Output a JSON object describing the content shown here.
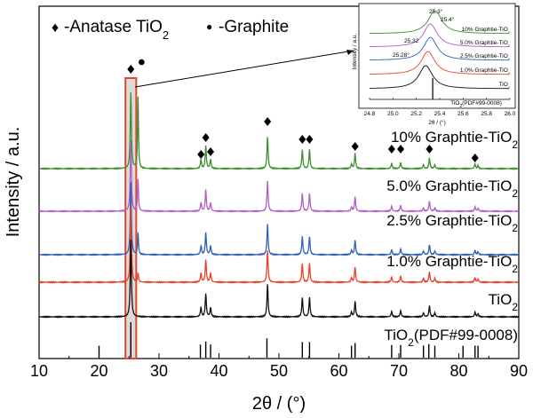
{
  "chart_data": {
    "type": "line",
    "xlabel": "2θ / (°)",
    "ylabel": "Intensity / a.u.",
    "xlim": [
      10,
      90
    ],
    "xticks": [
      "10",
      "20",
      "30",
      "40",
      "50",
      "60",
      "70",
      "80",
      "90"
    ],
    "legend": {
      "anatase": {
        "symbol": "♦",
        "text": "-Anatase TiO",
        "sub": "2"
      },
      "graphite": {
        "symbol": "●",
        "text": "-Graphite"
      }
    },
    "highlight_range": [
      24.4,
      26.2
    ],
    "series": [
      {
        "name": "10% Graphtie-TiO",
        "sub": "2",
        "color": "#3e8f2f",
        "graphite_peak": 26.5,
        "graphite_height": 0.95
      },
      {
        "name": "5.0% Graphtie-TiO",
        "sub": "2",
        "color": "#b15ec8",
        "graphite_peak": 26.5,
        "graphite_height": 0.45
      },
      {
        "name": "2.5% Graphtie-TiO",
        "sub": "2",
        "color": "#2f5fb8",
        "graphite_peak": 26.5,
        "graphite_height": 0.3
      },
      {
        "name": "1.0% Graphtie-TiO",
        "sub": "2",
        "color": "#e8412a",
        "graphite_peak": 26.5,
        "graphite_height": 0.12
      },
      {
        "name": "TiO",
        "sub": "2",
        "color": "#111111",
        "graphite_peak": null,
        "graphite_height": 0
      }
    ],
    "anatase_peaks": [
      {
        "x": 25.3,
        "h": 1.0
      },
      {
        "x": 37.0,
        "h": 0.12
      },
      {
        "x": 37.8,
        "h": 0.3
      },
      {
        "x": 38.6,
        "h": 0.12
      },
      {
        "x": 48.1,
        "h": 0.42
      },
      {
        "x": 53.9,
        "h": 0.25
      },
      {
        "x": 55.1,
        "h": 0.25
      },
      {
        "x": 62.1,
        "h": 0.06
      },
      {
        "x": 62.7,
        "h": 0.2
      },
      {
        "x": 68.8,
        "h": 0.07
      },
      {
        "x": 70.3,
        "h": 0.08
      },
      {
        "x": 74.1,
        "h": 0.05
      },
      {
        "x": 75.1,
        "h": 0.14
      },
      {
        "x": 76.0,
        "h": 0.05
      },
      {
        "x": 82.7,
        "h": 0.06
      },
      {
        "x": 83.2,
        "h": 0.04
      }
    ],
    "reference": {
      "name": "TiO",
      "sub": "2",
      "suffix": "(PDF#99-0008)",
      "lines": [
        {
          "x": 25.3,
          "h": 1.0
        },
        {
          "x": 36.9,
          "h": 0.1
        },
        {
          "x": 37.8,
          "h": 0.22
        },
        {
          "x": 38.6,
          "h": 0.1
        },
        {
          "x": 48.0,
          "h": 0.35
        },
        {
          "x": 53.9,
          "h": 0.2
        },
        {
          "x": 55.1,
          "h": 0.2
        },
        {
          "x": 62.1,
          "h": 0.05
        },
        {
          "x": 62.7,
          "h": 0.16
        },
        {
          "x": 68.8,
          "h": 0.08
        },
        {
          "x": 70.3,
          "h": 0.08
        },
        {
          "x": 74.1,
          "h": 0.06
        },
        {
          "x": 75.0,
          "h": 0.12
        },
        {
          "x": 76.0,
          "h": 0.05
        },
        {
          "x": 80.7,
          "h": 0.05
        },
        {
          "x": 82.7,
          "h": 0.06
        },
        {
          "x": 83.2,
          "h": 0.05
        },
        {
          "x": 20.0,
          "h": 0.05
        }
      ]
    },
    "markers": [
      {
        "type": "anatase",
        "x": 25.3
      },
      {
        "type": "graphite",
        "x": 26.5
      },
      {
        "type": "anatase",
        "x": 37.0
      },
      {
        "type": "anatase",
        "x": 37.8
      },
      {
        "type": "anatase",
        "x": 38.6
      },
      {
        "type": "anatase",
        "x": 48.1
      },
      {
        "type": "anatase",
        "x": 53.9
      },
      {
        "type": "anatase",
        "x": 55.1
      },
      {
        "type": "anatase",
        "x": 62.7
      },
      {
        "type": "anatase",
        "x": 68.8
      },
      {
        "type": "anatase",
        "x": 70.3
      },
      {
        "type": "anatase",
        "x": 75.1
      },
      {
        "type": "anatase",
        "x": 82.7
      }
    ],
    "inset": {
      "xlabel": "2θ / (°)",
      "ylabel": "Intensity / a.u.",
      "xlim": [
        24.8,
        26.0
      ],
      "xticks": [
        "24.8",
        "25.0",
        "25.2",
        "25.4",
        "25.6",
        "25.8",
        "26.0"
      ],
      "peak_labels": [
        "25.3°",
        "25.4°",
        "25.32",
        "25.28°"
      ],
      "peaks": [
        25.36,
        25.32,
        25.32,
        25.3,
        25.28
      ]
    }
  }
}
